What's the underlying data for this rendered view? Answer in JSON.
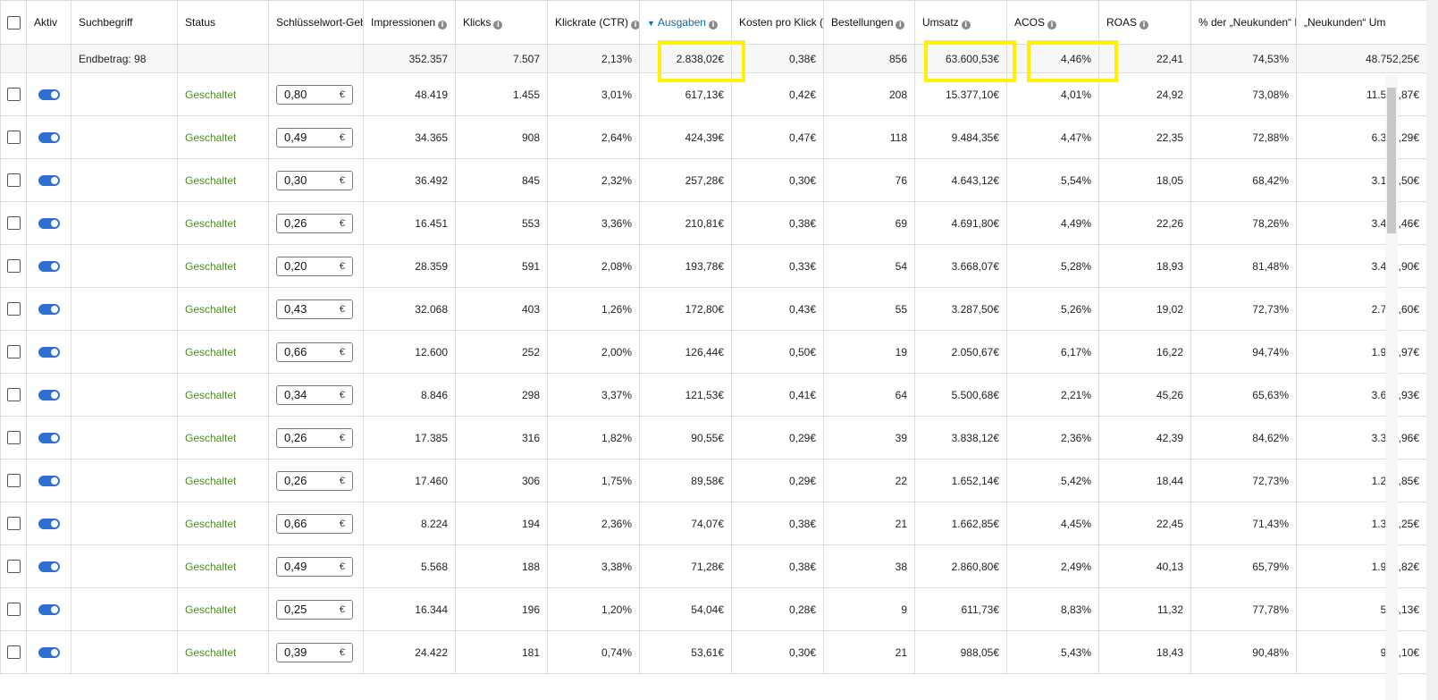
{
  "columns": [
    {
      "label": "",
      "type": "checkbox"
    },
    {
      "label": "Aktiv"
    },
    {
      "label": "Suchbegriff"
    },
    {
      "label": "Status"
    },
    {
      "label": "Schlüsselwort-Geb"
    },
    {
      "label": "Impressionen",
      "info": true
    },
    {
      "label": "Klicks",
      "info": true
    },
    {
      "label": "Klickrate (CTR)",
      "info": true
    },
    {
      "label": "Ausgaben",
      "info": true,
      "sorted": true
    },
    {
      "label": "Kosten pro Klick (",
      "info": false
    },
    {
      "label": "Bestellungen",
      "info": true
    },
    {
      "label": "Umsatz",
      "info": true
    },
    {
      "label": "ACOS",
      "info": true
    },
    {
      "label": "ROAS",
      "info": true
    },
    {
      "label": "% der „Neukunden“ B",
      "info": false
    },
    {
      "label": "„Neukunden“ Um",
      "info": false
    }
  ],
  "info_icon_glyph": "i",
  "sort_icon": "caret-down-icon",
  "totals": {
    "label": "Endbetrag: 98",
    "impressions": "352.357",
    "clicks": "7.507",
    "ctr": "2,13%",
    "spend": "2.838,02€",
    "cpc": "0,38€",
    "orders": "856",
    "sales": "63.600,53€",
    "acos": "4,46%",
    "roas": "22,41",
    "ntb_pct": "74,53%",
    "ntb_sales": "48.752,25€"
  },
  "rows": [
    {
      "status": "Geschaltet",
      "bid": "0,80",
      "impressions": "48.419",
      "clicks": "1.455",
      "ctr": "3,01%",
      "spend": "617,13€",
      "cpc": "0,42€",
      "orders": "208",
      "sales": "15.377,10€",
      "acos": "4,01%",
      "roas": "24,92",
      "ntb_pct": "73,08%",
      "ntb_sales": "11.518,87€"
    },
    {
      "status": "Geschaltet",
      "bid": "0,49",
      "impressions": "34.365",
      "clicks": "908",
      "ctr": "2,64%",
      "spend": "424,39€",
      "cpc": "0,47€",
      "orders": "118",
      "sales": "9.484,35€",
      "acos": "4,47%",
      "roas": "22,35",
      "ntb_pct": "72,88%",
      "ntb_sales": "6.316,29€"
    },
    {
      "status": "Geschaltet",
      "bid": "0,30",
      "impressions": "36.492",
      "clicks": "845",
      "ctr": "2,32%",
      "spend": "257,28€",
      "cpc": "0,30€",
      "orders": "76",
      "sales": "4.643,12€",
      "acos": "5,54%",
      "roas": "18,05",
      "ntb_pct": "68,42%",
      "ntb_sales": "3.195,50€"
    },
    {
      "status": "Geschaltet",
      "bid": "0,26",
      "impressions": "16.451",
      "clicks": "553",
      "ctr": "3,36%",
      "spend": "210,81€",
      "cpc": "0,38€",
      "orders": "69",
      "sales": "4.691,80€",
      "acos": "4,49%",
      "roas": "22,26",
      "ntb_pct": "78,26%",
      "ntb_sales": "3.428,46€"
    },
    {
      "status": "Geschaltet",
      "bid": "0,20",
      "impressions": "28.359",
      "clicks": "591",
      "ctr": "2,08%",
      "spend": "193,78€",
      "cpc": "0,33€",
      "orders": "54",
      "sales": "3.668,07€",
      "acos": "5,28%",
      "roas": "18,93",
      "ntb_pct": "81,48%",
      "ntb_sales": "3.449,90€"
    },
    {
      "status": "Geschaltet",
      "bid": "0,43",
      "impressions": "32.068",
      "clicks": "403",
      "ctr": "1,26%",
      "spend": "172,80€",
      "cpc": "0,43€",
      "orders": "55",
      "sales": "3.287,50€",
      "acos": "5,26%",
      "roas": "19,02",
      "ntb_pct": "72,73%",
      "ntb_sales": "2.759,60€"
    },
    {
      "status": "Geschaltet",
      "bid": "0,66",
      "impressions": "12.600",
      "clicks": "252",
      "ctr": "2,00%",
      "spend": "126,44€",
      "cpc": "0,50€",
      "orders": "19",
      "sales": "2.050,67€",
      "acos": "6,17%",
      "roas": "16,22",
      "ntb_pct": "94,74%",
      "ntb_sales": "1.990,97€"
    },
    {
      "status": "Geschaltet",
      "bid": "0,34",
      "impressions": "8.846",
      "clicks": "298",
      "ctr": "3,37%",
      "spend": "121,53€",
      "cpc": "0,41€",
      "orders": "64",
      "sales": "5.500,68€",
      "acos": "2,21%",
      "roas": "45,26",
      "ntb_pct": "65,63%",
      "ntb_sales": "3.643,93€"
    },
    {
      "status": "Geschaltet",
      "bid": "0,26",
      "impressions": "17.385",
      "clicks": "316",
      "ctr": "1,82%",
      "spend": "90,55€",
      "cpc": "0,29€",
      "orders": "39",
      "sales": "3.838,12€",
      "acos": "2,36%",
      "roas": "42,39",
      "ntb_pct": "84,62%",
      "ntb_sales": "3.390,96€"
    },
    {
      "status": "Geschaltet",
      "bid": "0,26",
      "impressions": "17.460",
      "clicks": "306",
      "ctr": "1,75%",
      "spend": "89,58€",
      "cpc": "0,29€",
      "orders": "22",
      "sales": "1.652,14€",
      "acos": "5,42%",
      "roas": "18,44",
      "ntb_pct": "72,73%",
      "ntb_sales": "1.276,85€"
    },
    {
      "status": "Geschaltet",
      "bid": "0,66",
      "impressions": "8.224",
      "clicks": "194",
      "ctr": "2,36%",
      "spend": "74,07€",
      "cpc": "0,38€",
      "orders": "21",
      "sales": "1.662,85€",
      "acos": "4,45%",
      "roas": "22,45",
      "ntb_pct": "71,43%",
      "ntb_sales": "1.356,25€"
    },
    {
      "status": "Geschaltet",
      "bid": "0,49",
      "impressions": "5.568",
      "clicks": "188",
      "ctr": "3,38%",
      "spend": "71,28€",
      "cpc": "0,38€",
      "orders": "38",
      "sales": "2.860,80€",
      "acos": "2,49%",
      "roas": "40,13",
      "ntb_pct": "65,79%",
      "ntb_sales": "1.969,82€"
    },
    {
      "status": "Geschaltet",
      "bid": "0,25",
      "impressions": "16.344",
      "clicks": "196",
      "ctr": "1,20%",
      "spend": "54,04€",
      "cpc": "0,28€",
      "orders": "9",
      "sales": "611,73€",
      "acos": "8,83%",
      "roas": "11,32",
      "ntb_pct": "77,78%",
      "ntb_sales": "534,13€"
    },
    {
      "status": "Geschaltet",
      "bid": "0,39",
      "impressions": "24.422",
      "clicks": "181",
      "ctr": "0,74%",
      "spend": "53,61€",
      "cpc": "0,30€",
      "orders": "21",
      "sales": "988,05€",
      "acos": "5,43%",
      "roas": "18,43",
      "ntb_pct": "90,48%",
      "ntb_sales": "962,10€"
    }
  ],
  "currency_symbol": "€",
  "colors": {
    "status": "#4b8f24",
    "toggle": "#2f6fd1",
    "highlight": "#fff200",
    "sorted_header": "#0b6bb3"
  }
}
